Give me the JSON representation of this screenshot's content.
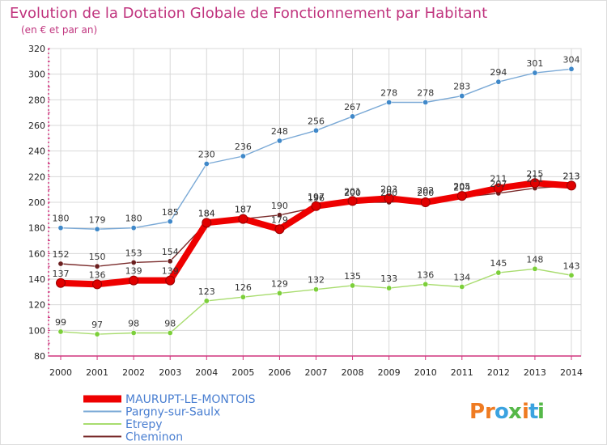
{
  "chart_data": {
    "type": "line",
    "title": "Evolution de la Dotation Globale de Fonctionnement par Habitant",
    "subtitle": "(en € et par an)",
    "xlabel": "",
    "ylabel": "",
    "ylim": [
      80,
      320
    ],
    "yticks": [
      80,
      100,
      120,
      140,
      160,
      180,
      200,
      220,
      240,
      260,
      280,
      300,
      320
    ],
    "x": [
      "2000",
      "2001",
      "2002",
      "2003",
      "2004",
      "2005",
      "2006",
      "2007",
      "2008",
      "2009",
      "2010",
      "2011",
      "2012",
      "2013",
      "2014"
    ],
    "grid": true,
    "legend_position": "bottom-left",
    "series": [
      {
        "name": "Pargny-sur-Saulx",
        "color": "#7aa9d6",
        "marker_color": "#3f88c9",
        "values": [
          180,
          179,
          180,
          185,
          230,
          236,
          248,
          256,
          267,
          278,
          278,
          283,
          294,
          301,
          304
        ],
        "labels": [
          "180",
          "179",
          "180",
          "185",
          "230",
          "236",
          "248",
          "256",
          "267",
          "278",
          "278",
          "283",
          "294",
          "301",
          "304"
        ]
      },
      {
        "name": "Etrepy",
        "color": "#a8dc6e",
        "marker_color": "#7ccf3a",
        "values": [
          99,
          97,
          98,
          98,
          123,
          126,
          129,
          132,
          135,
          133,
          136,
          134,
          145,
          148,
          143
        ],
        "labels": [
          "99",
          "97",
          "98",
          "98",
          "123",
          "126",
          "129",
          "132",
          "135",
          "133",
          "136",
          "134",
          "145",
          "148",
          "143"
        ]
      },
      {
        "name": "Cheminon",
        "color": "#7a2b2b",
        "marker_color": "#6b1f1f",
        "values": [
          152,
          150,
          153,
          154,
          184,
          187,
          190,
          196,
          200,
          200,
          202,
          204,
          207,
          211,
          213
        ],
        "labels": [
          "152",
          "150",
          "153",
          "154",
          "184",
          "187",
          "190",
          "196",
          "200",
          "200",
          "202",
          "204",
          "207",
          "211",
          "213"
        ]
      },
      {
        "name": "MAURUPT-LE-MONTOIS",
        "color": "#ee0000",
        "marker_color": "#e00000",
        "values": [
          137,
          136,
          139,
          139,
          184,
          187,
          179,
          197,
          201,
          203,
          200,
          205,
          211,
          215,
          213
        ],
        "labels": [
          "137",
          "136",
          "139",
          "139",
          "184",
          "187",
          "179",
          "197",
          "201",
          "203",
          "200",
          "205",
          "211",
          "215",
          "213"
        ]
      }
    ],
    "legend_order": [
      "MAURUPT-LE-MONTOIS",
      "Pargny-sur-Saulx",
      "Etrepy",
      "Cheminon"
    ]
  },
  "brand": {
    "letters": [
      "P",
      "r",
      "o",
      "x",
      "i",
      "t",
      "i"
    ],
    "letter_colors": [
      "#ef7b22",
      "#ef7b22",
      "#3ba3e0",
      "#55b848",
      "#ef7b22",
      "#3ba3e0",
      "#55b848"
    ]
  },
  "colors": {
    "title": "#c0347e",
    "axis": "#d1357f",
    "grid": "#d8d8d8",
    "background": "#ffffff",
    "plot_border": "#d8d8d8"
  }
}
